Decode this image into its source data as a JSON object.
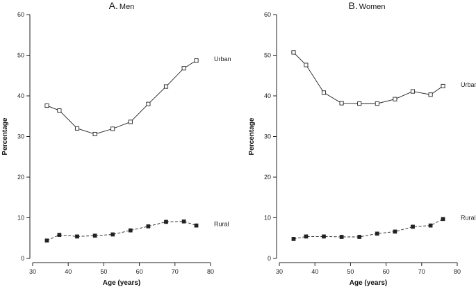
{
  "chart_data": [
    {
      "type": "line",
      "panel_letter": "A.",
      "panel_title": "Men",
      "xlabel": "Age (years)",
      "ylabel": "Percentage",
      "xlim": [
        30,
        80
      ],
      "ylim": [
        0,
        60
      ],
      "xticks": [
        "30",
        "40",
        "50",
        "60",
        "70",
        "80"
      ],
      "yticks": [
        "0",
        "10",
        "20",
        "30",
        "40",
        "50",
        "60"
      ],
      "series": [
        {
          "name": "Urban",
          "marker": "open-square",
          "line": "solid",
          "x": [
            34,
            37.5,
            42.5,
            47.5,
            52.5,
            57.5,
            62.5,
            67.5,
            72.5,
            76
          ],
          "values": [
            37.6,
            36.4,
            32.0,
            30.6,
            31.9,
            33.6,
            38.0,
            42.3,
            46.8,
            48.7
          ]
        },
        {
          "name": "Rural",
          "marker": "filled-square",
          "line": "dashed",
          "x": [
            34,
            37.5,
            42.5,
            47.5,
            52.5,
            57.5,
            62.5,
            67.5,
            72.5,
            76
          ],
          "values": [
            4.4,
            5.8,
            5.4,
            5.6,
            5.9,
            6.9,
            7.9,
            9.0,
            9.1,
            8.1
          ]
        }
      ]
    },
    {
      "type": "line",
      "panel_letter": "B.",
      "panel_title": "Women",
      "xlabel": "Age (years)",
      "ylabel": "Percentage",
      "xlim": [
        30,
        80
      ],
      "ylim": [
        0,
        60
      ],
      "xticks": [
        "30",
        "40",
        "50",
        "60",
        "70",
        "80"
      ],
      "yticks": [
        "0",
        "10",
        "20",
        "30",
        "40",
        "50",
        "60"
      ],
      "series": [
        {
          "name": "Urban",
          "marker": "open-square",
          "line": "solid",
          "x": [
            34,
            37.5,
            42.5,
            47.5,
            52.5,
            57.5,
            62.5,
            67.5,
            72.5,
            76
          ],
          "values": [
            50.7,
            47.6,
            40.8,
            38.2,
            38.1,
            38.1,
            39.2,
            41.1,
            40.3,
            42.4
          ]
        },
        {
          "name": "Rural",
          "marker": "filled-square",
          "line": "dashed",
          "x": [
            34,
            37.5,
            42.5,
            47.5,
            52.5,
            57.5,
            62.5,
            67.5,
            72.5,
            76
          ],
          "values": [
            4.8,
            5.4,
            5.4,
            5.3,
            5.3,
            6.1,
            6.6,
            7.8,
            8.1,
            9.7
          ]
        }
      ]
    }
  ]
}
